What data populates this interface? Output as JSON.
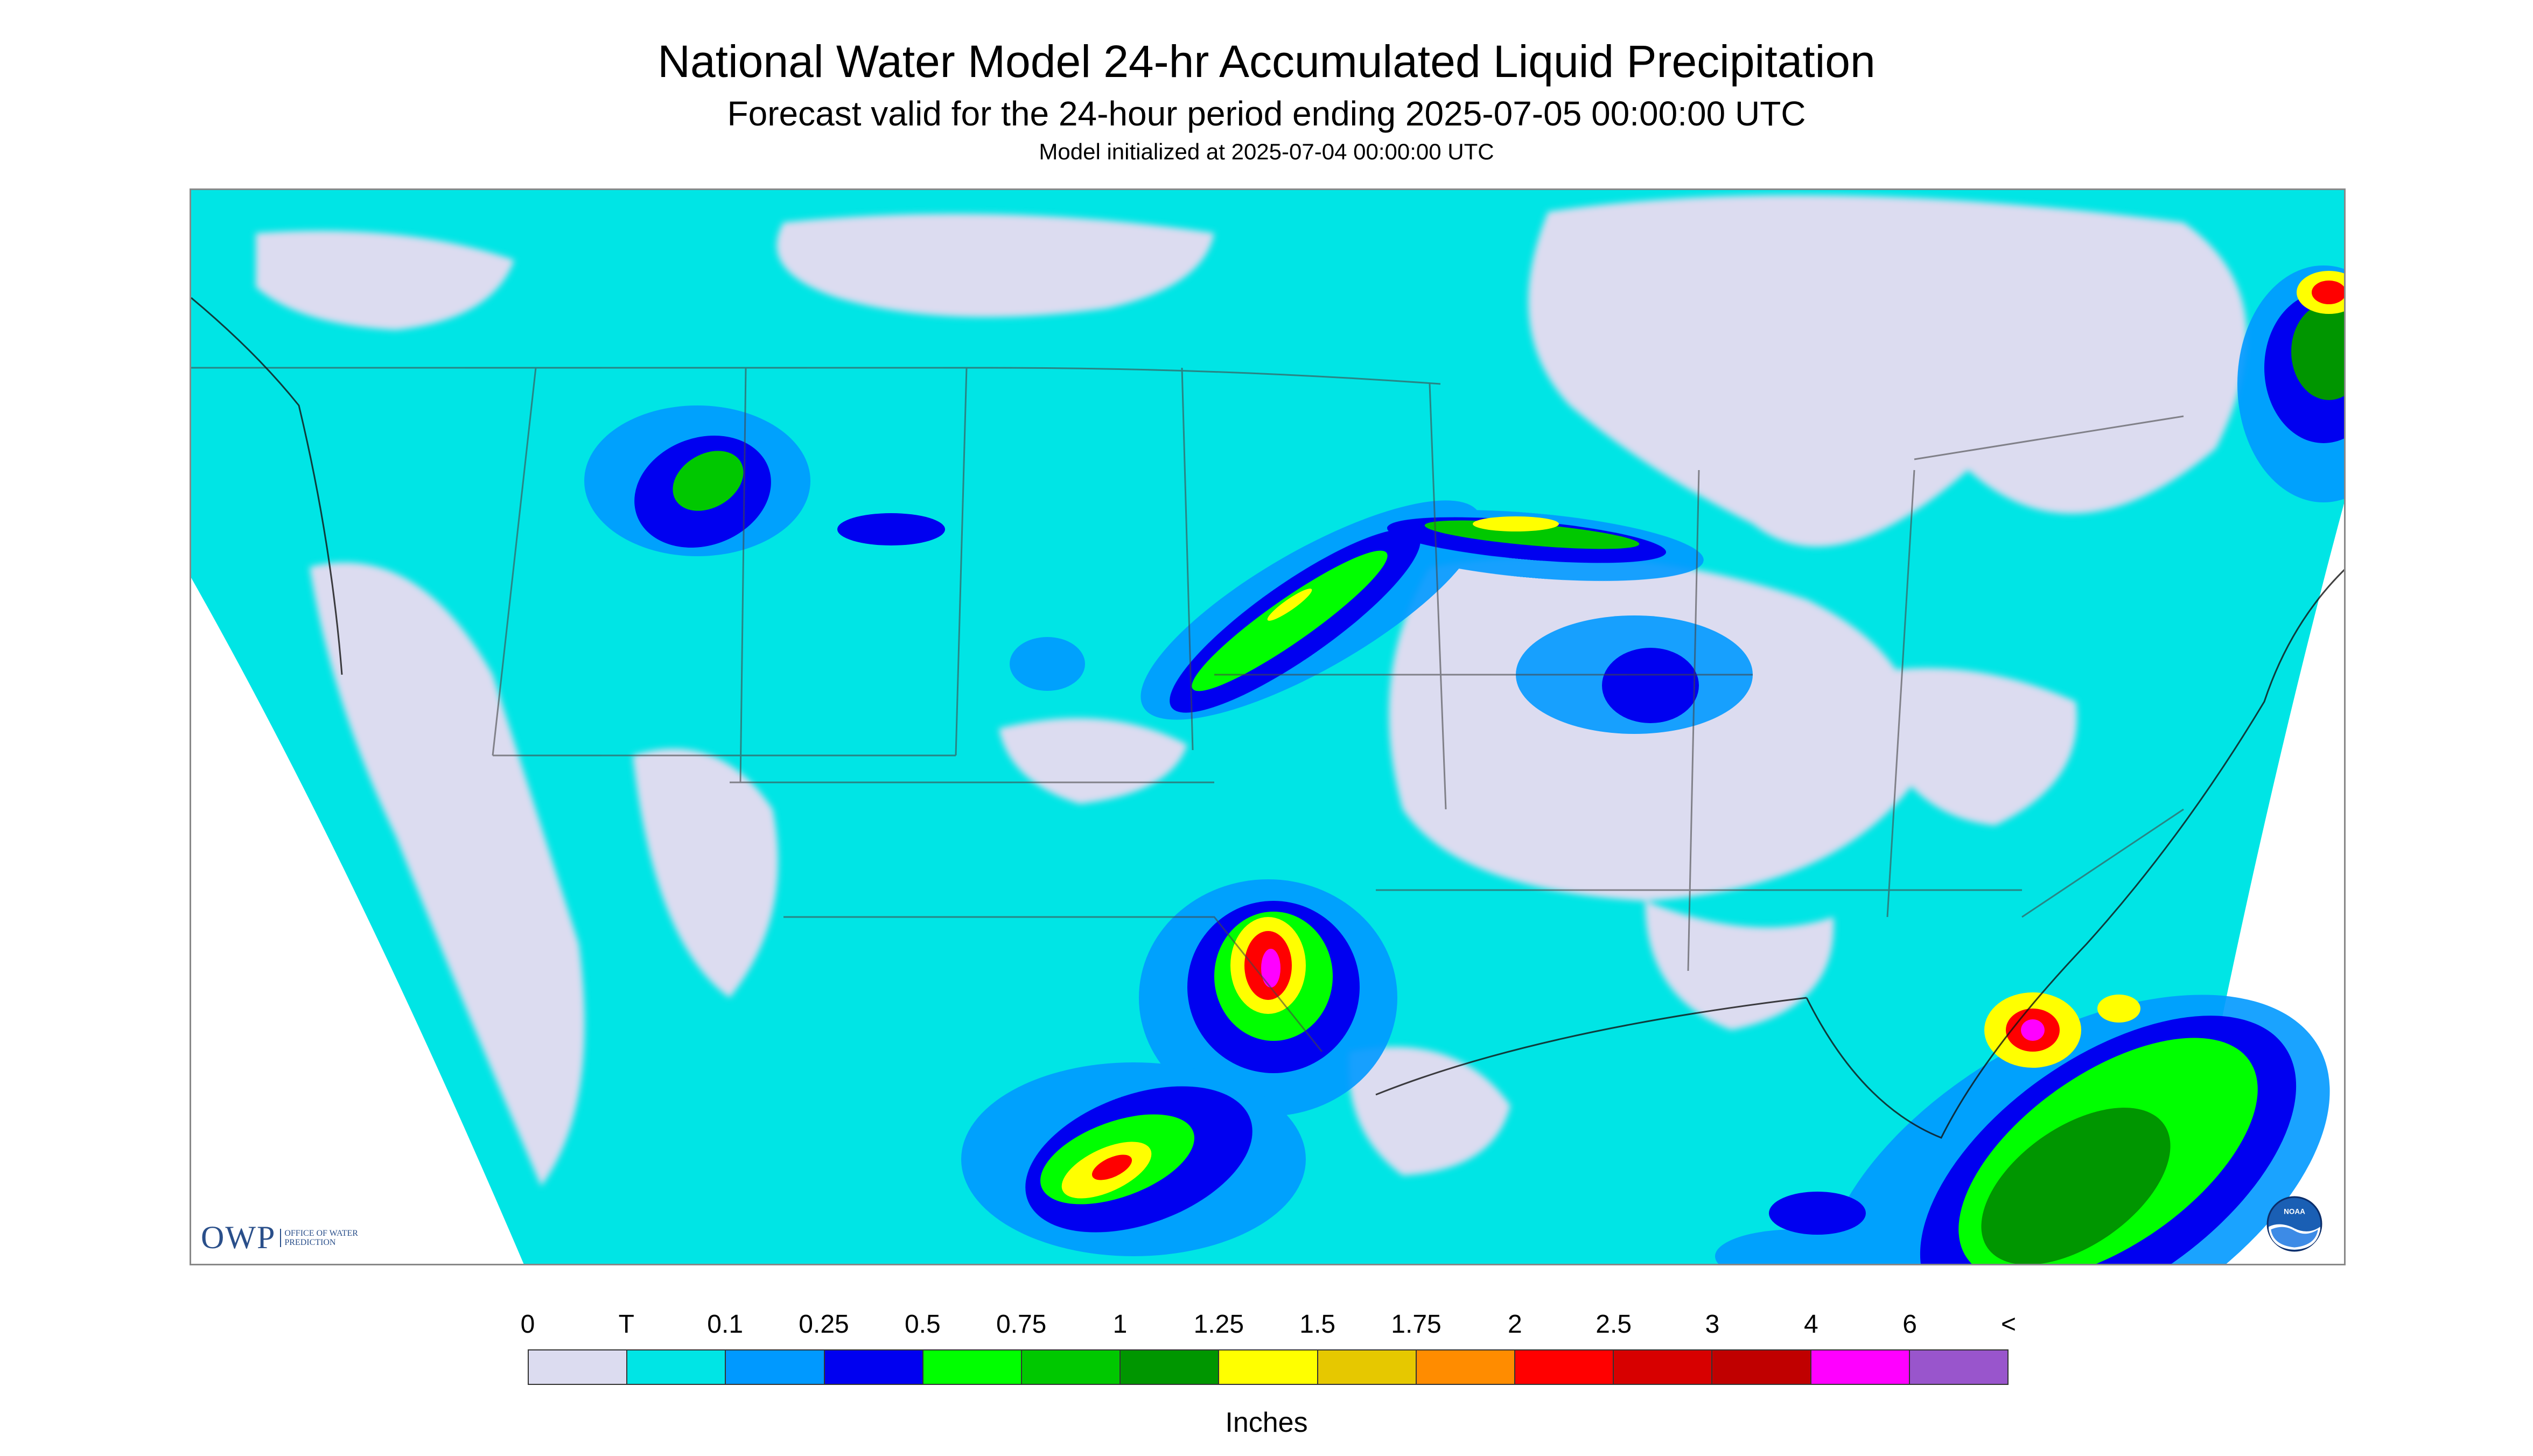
{
  "title": "National Water Model 24-hr Accumulated Liquid Precipitation",
  "subtitle": "Forecast valid for the 24-hour period ending 2025-07-05 00:00:00 UTC",
  "init_time": "Model initialized at 2025-07-04 00:00:00 UTC",
  "map": {
    "region": "Contiguous United States",
    "owp_logo_text": "OWP",
    "owp_logo_subtext": "OFFICE OF WATER PREDICTION",
    "noaa_logo": "NOAA"
  },
  "legend": {
    "units": "Inches",
    "labels": [
      "0",
      "T",
      "0.1",
      "0.25",
      "0.5",
      "0.75",
      "1",
      "1.25",
      "1.5",
      "1.75",
      "2",
      "2.5",
      "3",
      "4",
      "6",
      "<"
    ],
    "colors": [
      "#dcdcf0",
      "#00e5e5",
      "#0099ff",
      "#0000f0",
      "#00ff00",
      "#00c800",
      "#009600",
      "#ffff00",
      "#e6c800",
      "#ff8c00",
      "#ff0000",
      "#d70000",
      "#c00000",
      "#ff00ff",
      "#9955cc"
    ]
  },
  "colors": {
    "background": "#dcdcf0",
    "trace": "#00e5e5",
    "light": "#0099ff",
    "moderate": "#0000f0",
    "heavy_green": "#00c800",
    "extreme_red": "#ff0000"
  }
}
